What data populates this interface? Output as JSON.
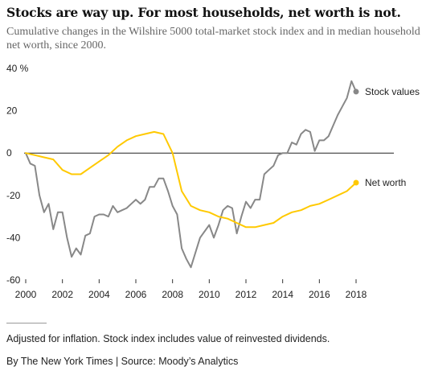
{
  "chart_data": {
    "type": "line",
    "title": "Stocks are way up. For most households, net worth is not.",
    "subtitle": "Cumulative changes in the Wilshire 5000 total-market stock index and in median household net worth, since 2000.",
    "ylim": [
      -60,
      40
    ],
    "xlim": [
      2000,
      2018
    ],
    "yticks": [
      -60,
      -40,
      -20,
      0,
      20,
      40
    ],
    "ytick_labels": [
      "-60",
      "-40",
      "-20",
      "0",
      "20",
      "40 %"
    ],
    "xticks": [
      2000,
      2002,
      2004,
      2006,
      2008,
      2010,
      2012,
      2014,
      2016,
      2018
    ],
    "xtick_labels": [
      "2000",
      "2002",
      "2004",
      "2006",
      "2008",
      "2010",
      "2012",
      "2014",
      "2016",
      "2018"
    ],
    "zero_line": true,
    "series": [
      {
        "name": "Stock values",
        "color": "#888888",
        "x": [
          2000,
          2000.25,
          2000.5,
          2000.75,
          2001,
          2001.25,
          2001.5,
          2001.75,
          2002,
          2002.25,
          2002.5,
          2002.75,
          2003,
          2003.25,
          2003.5,
          2003.75,
          2004,
          2004.25,
          2004.5,
          2004.75,
          2005,
          2005.25,
          2005.5,
          2005.75,
          2006,
          2006.25,
          2006.5,
          2006.75,
          2007,
          2007.25,
          2007.5,
          2007.75,
          2008,
          2008.25,
          2008.5,
          2008.75,
          2009,
          2009.25,
          2009.5,
          2009.75,
          2010,
          2010.25,
          2010.5,
          2010.75,
          2011,
          2011.25,
          2011.5,
          2011.75,
          2012,
          2012.25,
          2012.5,
          2012.75,
          2013,
          2013.25,
          2013.5,
          2013.75,
          2014,
          2014.25,
          2014.5,
          2014.75,
          2015,
          2015.25,
          2015.5,
          2015.75,
          2016,
          2016.25,
          2016.5,
          2016.75,
          2017,
          2017.25,
          2017.5,
          2017.75,
          2018
        ],
        "values": [
          0,
          -5,
          -6,
          -20,
          -28,
          -24,
          -36,
          -28,
          -28,
          -40,
          -49,
          -45,
          -48,
          -39,
          -38,
          -30,
          -29,
          -29,
          -30,
          -25,
          -28,
          -27,
          -26,
          -24,
          -22,
          -24,
          -22,
          -16,
          -16,
          -12,
          -12,
          -18,
          -25,
          -29,
          -45,
          -50,
          -54,
          -47,
          -40,
          -37,
          -34,
          -40,
          -34,
          -27,
          -25,
          -26,
          -38,
          -30,
          -23,
          -26,
          -22,
          -22,
          -10,
          -8,
          -6,
          -1,
          0,
          0,
          5,
          4,
          9,
          11,
          10,
          1,
          6,
          6,
          8,
          13,
          18,
          22,
          26,
          34,
          29
        ]
      },
      {
        "name": "Net worth",
        "color": "#ffc900",
        "x": [
          2000,
          2000.5,
          2001,
          2001.5,
          2002,
          2002.5,
          2003,
          2003.5,
          2004,
          2004.5,
          2005,
          2005.5,
          2006,
          2006.5,
          2007,
          2007.5,
          2008,
          2008.5,
          2009,
          2009.5,
          2010,
          2010.5,
          2011,
          2011.5,
          2012,
          2012.5,
          2013,
          2013.5,
          2014,
          2014.5,
          2015,
          2015.5,
          2016,
          2016.5,
          2017,
          2017.5,
          2018
        ],
        "values": [
          0,
          -1,
          -2,
          -3,
          -8,
          -10,
          -10,
          -7,
          -4,
          -1,
          3,
          6,
          8,
          9,
          10,
          9,
          0,
          -18,
          -25,
          -27,
          -28,
          -30,
          -31,
          -33,
          -35,
          -35,
          -34,
          -33,
          -30,
          -28,
          -27,
          -25,
          -24,
          -22,
          -20,
          -18,
          -14
        ]
      }
    ]
  },
  "labels": {
    "stock_values": "Stock values",
    "net_worth": "Net worth"
  },
  "footnote": "Adjusted for inflation. Stock index includes value of reinvested dividends.",
  "credit": "By The New York Times | Source: Moody’s Analytics"
}
